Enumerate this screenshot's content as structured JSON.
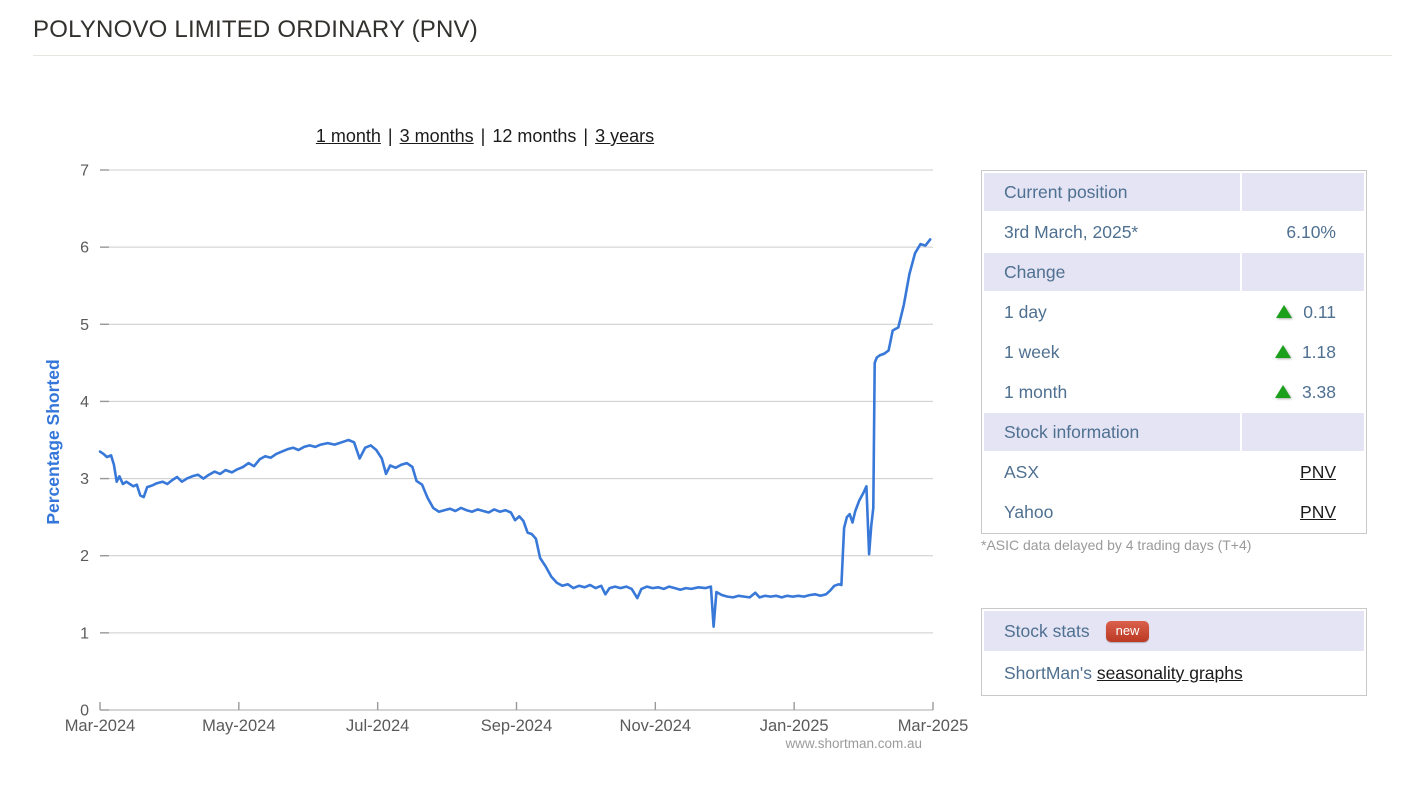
{
  "page": {
    "title": "POLYNOVO LIMITED ORDINARY (PNV)",
    "watermark": "www.shortman.com.au"
  },
  "period_selector": {
    "separator": "|",
    "items": [
      {
        "label": "1 month",
        "link": true
      },
      {
        "label": "3 months",
        "link": true
      },
      {
        "label": "12 months",
        "link": false
      },
      {
        "label": "3 years",
        "link": true
      }
    ]
  },
  "chart_data": {
    "type": "line",
    "title": "",
    "xlabel": "",
    "ylabel": "Percentage Shorted",
    "ylim": [
      0,
      7
    ],
    "yticks": [
      0,
      1,
      2,
      3,
      4,
      5,
      6,
      7
    ],
    "xlim_months": [
      0,
      12
    ],
    "xticks": [
      {
        "t": 0,
        "label": "Mar-2024"
      },
      {
        "t": 2,
        "label": "May-2024"
      },
      {
        "t": 4,
        "label": "Jul-2024"
      },
      {
        "t": 6,
        "label": "Sep-2024"
      },
      {
        "t": 8,
        "label": "Nov-2024"
      },
      {
        "t": 10,
        "label": "Jan-2025"
      },
      {
        "t": 12,
        "label": "Mar-2025"
      }
    ],
    "grid": true,
    "legend": "none",
    "line_color": "#3878d8",
    "axis_text_color": "#5a5a5a",
    "grid_color": "#cccccc",
    "series": [
      {
        "name": "PNV percentage shorted",
        "points": [
          [
            0.0,
            3.35
          ],
          [
            0.05,
            3.32
          ],
          [
            0.1,
            3.28
          ],
          [
            0.16,
            3.3
          ],
          [
            0.2,
            3.18
          ],
          [
            0.24,
            2.96
          ],
          [
            0.28,
            3.03
          ],
          [
            0.33,
            2.93
          ],
          [
            0.38,
            2.96
          ],
          [
            0.43,
            2.93
          ],
          [
            0.48,
            2.9
          ],
          [
            0.53,
            2.92
          ],
          [
            0.58,
            2.78
          ],
          [
            0.63,
            2.76
          ],
          [
            0.68,
            2.89
          ],
          [
            0.75,
            2.91
          ],
          [
            0.82,
            2.94
          ],
          [
            0.9,
            2.96
          ],
          [
            0.97,
            2.93
          ],
          [
            1.04,
            2.98
          ],
          [
            1.11,
            3.02
          ],
          [
            1.18,
            2.96
          ],
          [
            1.25,
            3.0
          ],
          [
            1.33,
            3.03
          ],
          [
            1.41,
            3.05
          ],
          [
            1.49,
            3.0
          ],
          [
            1.57,
            3.05
          ],
          [
            1.65,
            3.09
          ],
          [
            1.73,
            3.06
          ],
          [
            1.81,
            3.11
          ],
          [
            1.9,
            3.08
          ],
          [
            1.98,
            3.12
          ],
          [
            2.06,
            3.15
          ],
          [
            2.14,
            3.2
          ],
          [
            2.22,
            3.16
          ],
          [
            2.3,
            3.25
          ],
          [
            2.38,
            3.29
          ],
          [
            2.46,
            3.27
          ],
          [
            2.54,
            3.32
          ],
          [
            2.62,
            3.35
          ],
          [
            2.7,
            3.38
          ],
          [
            2.78,
            3.4
          ],
          [
            2.86,
            3.37
          ],
          [
            2.94,
            3.41
          ],
          [
            3.02,
            3.43
          ],
          [
            3.1,
            3.41
          ],
          [
            3.18,
            3.44
          ],
          [
            3.28,
            3.46
          ],
          [
            3.38,
            3.44
          ],
          [
            3.48,
            3.47
          ],
          [
            3.58,
            3.5
          ],
          [
            3.66,
            3.47
          ],
          [
            3.74,
            3.26
          ],
          [
            3.82,
            3.4
          ],
          [
            3.9,
            3.43
          ],
          [
            3.98,
            3.37
          ],
          [
            4.06,
            3.26
          ],
          [
            4.12,
            3.06
          ],
          [
            4.18,
            3.17
          ],
          [
            4.26,
            3.14
          ],
          [
            4.34,
            3.18
          ],
          [
            4.42,
            3.2
          ],
          [
            4.5,
            3.15
          ],
          [
            4.56,
            2.97
          ],
          [
            4.64,
            2.92
          ],
          [
            4.72,
            2.75
          ],
          [
            4.8,
            2.62
          ],
          [
            4.88,
            2.57
          ],
          [
            4.96,
            2.59
          ],
          [
            5.04,
            2.61
          ],
          [
            5.12,
            2.58
          ],
          [
            5.2,
            2.62
          ],
          [
            5.28,
            2.59
          ],
          [
            5.36,
            2.57
          ],
          [
            5.44,
            2.6
          ],
          [
            5.52,
            2.58
          ],
          [
            5.6,
            2.56
          ],
          [
            5.68,
            2.6
          ],
          [
            5.76,
            2.57
          ],
          [
            5.84,
            2.59
          ],
          [
            5.92,
            2.56
          ],
          [
            5.98,
            2.46
          ],
          [
            6.04,
            2.51
          ],
          [
            6.1,
            2.45
          ],
          [
            6.16,
            2.3
          ],
          [
            6.22,
            2.28
          ],
          [
            6.28,
            2.22
          ],
          [
            6.34,
            1.97
          ],
          [
            6.42,
            1.86
          ],
          [
            6.5,
            1.73
          ],
          [
            6.58,
            1.65
          ],
          [
            6.66,
            1.61
          ],
          [
            6.74,
            1.63
          ],
          [
            6.82,
            1.58
          ],
          [
            6.9,
            1.61
          ],
          [
            6.98,
            1.59
          ],
          [
            7.06,
            1.62
          ],
          [
            7.14,
            1.58
          ],
          [
            7.22,
            1.61
          ],
          [
            7.28,
            1.5
          ],
          [
            7.34,
            1.58
          ],
          [
            7.42,
            1.6
          ],
          [
            7.5,
            1.58
          ],
          [
            7.58,
            1.6
          ],
          [
            7.66,
            1.57
          ],
          [
            7.74,
            1.45
          ],
          [
            7.8,
            1.57
          ],
          [
            7.88,
            1.6
          ],
          [
            7.96,
            1.58
          ],
          [
            8.04,
            1.59
          ],
          [
            8.12,
            1.57
          ],
          [
            8.2,
            1.6
          ],
          [
            8.28,
            1.58
          ],
          [
            8.36,
            1.56
          ],
          [
            8.44,
            1.58
          ],
          [
            8.52,
            1.57
          ],
          [
            8.62,
            1.59
          ],
          [
            8.72,
            1.58
          ],
          [
            8.8,
            1.6
          ],
          [
            8.84,
            1.08
          ],
          [
            8.88,
            1.53
          ],
          [
            8.96,
            1.49
          ],
          [
            9.04,
            1.47
          ],
          [
            9.12,
            1.46
          ],
          [
            9.2,
            1.48
          ],
          [
            9.28,
            1.47
          ],
          [
            9.36,
            1.46
          ],
          [
            9.44,
            1.52
          ],
          [
            9.5,
            1.46
          ],
          [
            9.58,
            1.48
          ],
          [
            9.66,
            1.47
          ],
          [
            9.74,
            1.48
          ],
          [
            9.82,
            1.46
          ],
          [
            9.9,
            1.48
          ],
          [
            9.98,
            1.47
          ],
          [
            10.06,
            1.48
          ],
          [
            10.14,
            1.47
          ],
          [
            10.22,
            1.49
          ],
          [
            10.3,
            1.5
          ],
          [
            10.38,
            1.48
          ],
          [
            10.46,
            1.5
          ],
          [
            10.52,
            1.55
          ],
          [
            10.58,
            1.61
          ],
          [
            10.64,
            1.63
          ],
          [
            10.68,
            1.62
          ],
          [
            10.72,
            2.36
          ],
          [
            10.76,
            2.5
          ],
          [
            10.8,
            2.54
          ],
          [
            10.84,
            2.43
          ],
          [
            10.88,
            2.58
          ],
          [
            10.94,
            2.72
          ],
          [
            11.0,
            2.82
          ],
          [
            11.04,
            2.9
          ],
          [
            11.08,
            2.02
          ],
          [
            11.11,
            2.38
          ],
          [
            11.14,
            2.62
          ],
          [
            11.16,
            4.5
          ],
          [
            11.19,
            4.57
          ],
          [
            11.24,
            4.6
          ],
          [
            11.3,
            4.62
          ],
          [
            11.36,
            4.66
          ],
          [
            11.42,
            4.92
          ],
          [
            11.5,
            4.96
          ],
          [
            11.58,
            5.25
          ],
          [
            11.66,
            5.65
          ],
          [
            11.74,
            5.92
          ],
          [
            11.82,
            6.04
          ],
          [
            11.89,
            6.02
          ],
          [
            11.96,
            6.1
          ]
        ]
      }
    ]
  },
  "position_table": {
    "rows": [
      {
        "type": "header",
        "label": "Current position",
        "value": ""
      },
      {
        "type": "data",
        "label": "3rd March, 2025*",
        "value": "6.10%"
      },
      {
        "type": "header",
        "label": "Change",
        "value": ""
      },
      {
        "type": "data",
        "label": "1 day",
        "value": "0.11",
        "direction": "up"
      },
      {
        "type": "data",
        "label": "1 week",
        "value": "1.18",
        "direction": "up"
      },
      {
        "type": "data",
        "label": "1 month",
        "value": "3.38",
        "direction": "up"
      },
      {
        "type": "header",
        "label": "Stock information",
        "value": ""
      },
      {
        "type": "data",
        "label": "ASX",
        "value": "PNV",
        "link": true
      },
      {
        "type": "data",
        "label": "Yahoo",
        "value": "PNV",
        "link": true
      }
    ],
    "footnote": "*ASIC data delayed by 4 trading days (T+4)"
  },
  "stats_box": {
    "header": "Stock stats",
    "badge": "new",
    "row_prefix": "ShortMan's ",
    "row_link": "seasonality graphs"
  },
  "colors": {
    "line_blue": "#3878d8",
    "ylabel_blue": "#3476d9",
    "table_text": "#4f7090",
    "header_lavender": "#e4e4f4",
    "arrow_green": "#1ca01c",
    "badge_red": "#bb3a24",
    "link_dark": "#1b1b1b",
    "footnote_gray": "#9a9a9a"
  }
}
